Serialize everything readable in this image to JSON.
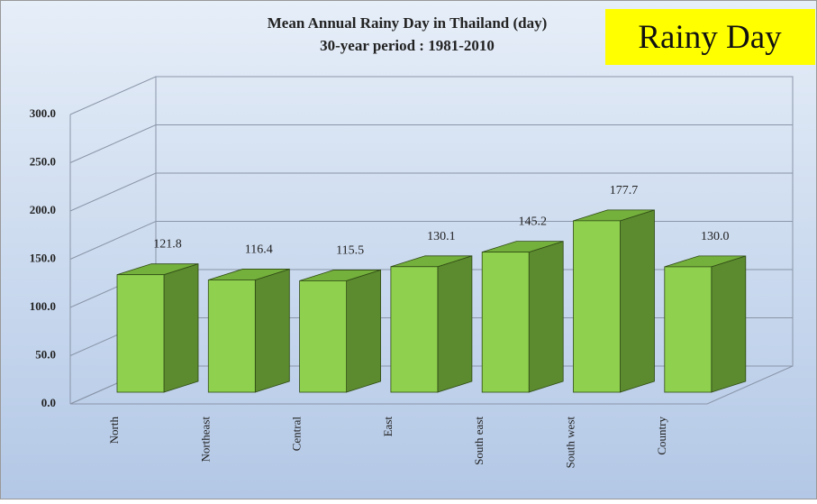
{
  "chart_data": {
    "type": "bar3d",
    "title": "Mean Annual Rainy Day in Thailand (day)",
    "subtitle": "30-year period : 1981-2010",
    "annotation": "Rainy Day",
    "categories": [
      "North",
      "Northeast",
      "Central",
      "East",
      "South east",
      "South west",
      "Country"
    ],
    "values": [
      121.8,
      116.4,
      115.5,
      130.1,
      145.2,
      177.7,
      130.0
    ],
    "value_labels": [
      "121.8",
      "116.4",
      "115.5",
      "130.1",
      "145.2",
      "177.7",
      "130.0"
    ],
    "color": "#8fd14f",
    "ylim": [
      0,
      300
    ],
    "yticks": [
      {
        "value": 0,
        "label": "0.0"
      },
      {
        "value": 50,
        "label": "50.0"
      },
      {
        "value": 100,
        "label": "100.0"
      },
      {
        "value": 150,
        "label": "150.0"
      },
      {
        "value": 200,
        "label": "200.0"
      },
      {
        "value": 250,
        "label": "250.0"
      },
      {
        "value": 300,
        "label": "300.0"
      }
    ],
    "grid": true
  }
}
